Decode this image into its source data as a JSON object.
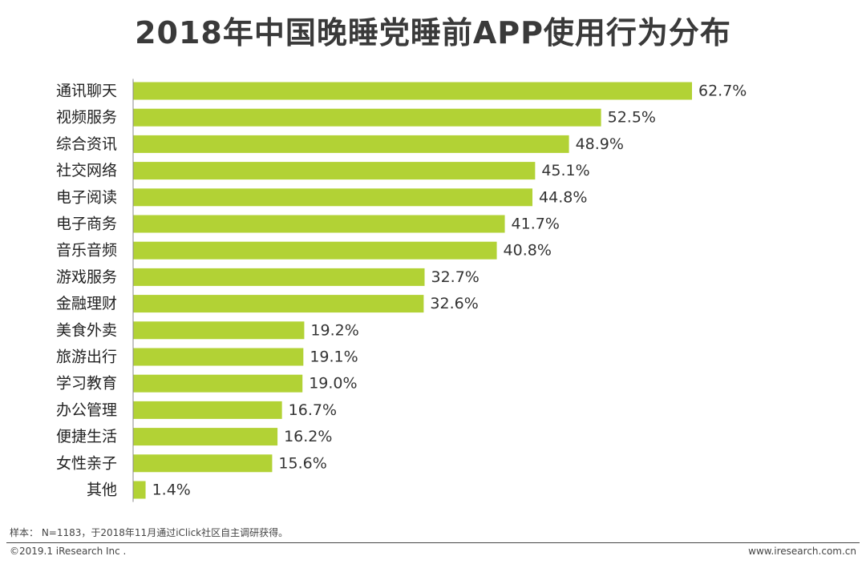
{
  "chart_data": {
    "type": "bar",
    "orientation": "horizontal",
    "title": "2018年中国晚睡党睡前APP使用行为分布",
    "categories": [
      "通讯聊天",
      "视频服务",
      "综合资讯",
      "社交网络",
      "电子阅读",
      "电子商务",
      "音乐音频",
      "游戏服务",
      "金融理财",
      "美食外卖",
      "旅游出行",
      "学习教育",
      "办公管理",
      "便捷生活",
      "女性亲子",
      "其他"
    ],
    "values": [
      62.7,
      52.5,
      48.9,
      45.1,
      44.8,
      41.7,
      40.8,
      32.7,
      32.6,
      19.2,
      19.1,
      19.0,
      16.7,
      16.2,
      15.6,
      1.4
    ],
    "value_labels": [
      "62.7%",
      "52.5%",
      "48.9%",
      "45.1%",
      "44.8%",
      "41.7%",
      "40.8%",
      "32.7%",
      "32.6%",
      "19.2%",
      "19.1%",
      "19.0%",
      "16.7%",
      "16.2%",
      "15.6%",
      "1.4%"
    ],
    "xlim": [
      0,
      62.7
    ],
    "grid": false,
    "bar_color": "#b2d235",
    "axis_color": "#888888"
  },
  "footer": {
    "note": "样本： N=1183，于2018年11月通过iClick社区自主调研获得。",
    "copyright": "©2019.1 iResearch Inc .",
    "website": "www.iresearch.com.cn"
  }
}
